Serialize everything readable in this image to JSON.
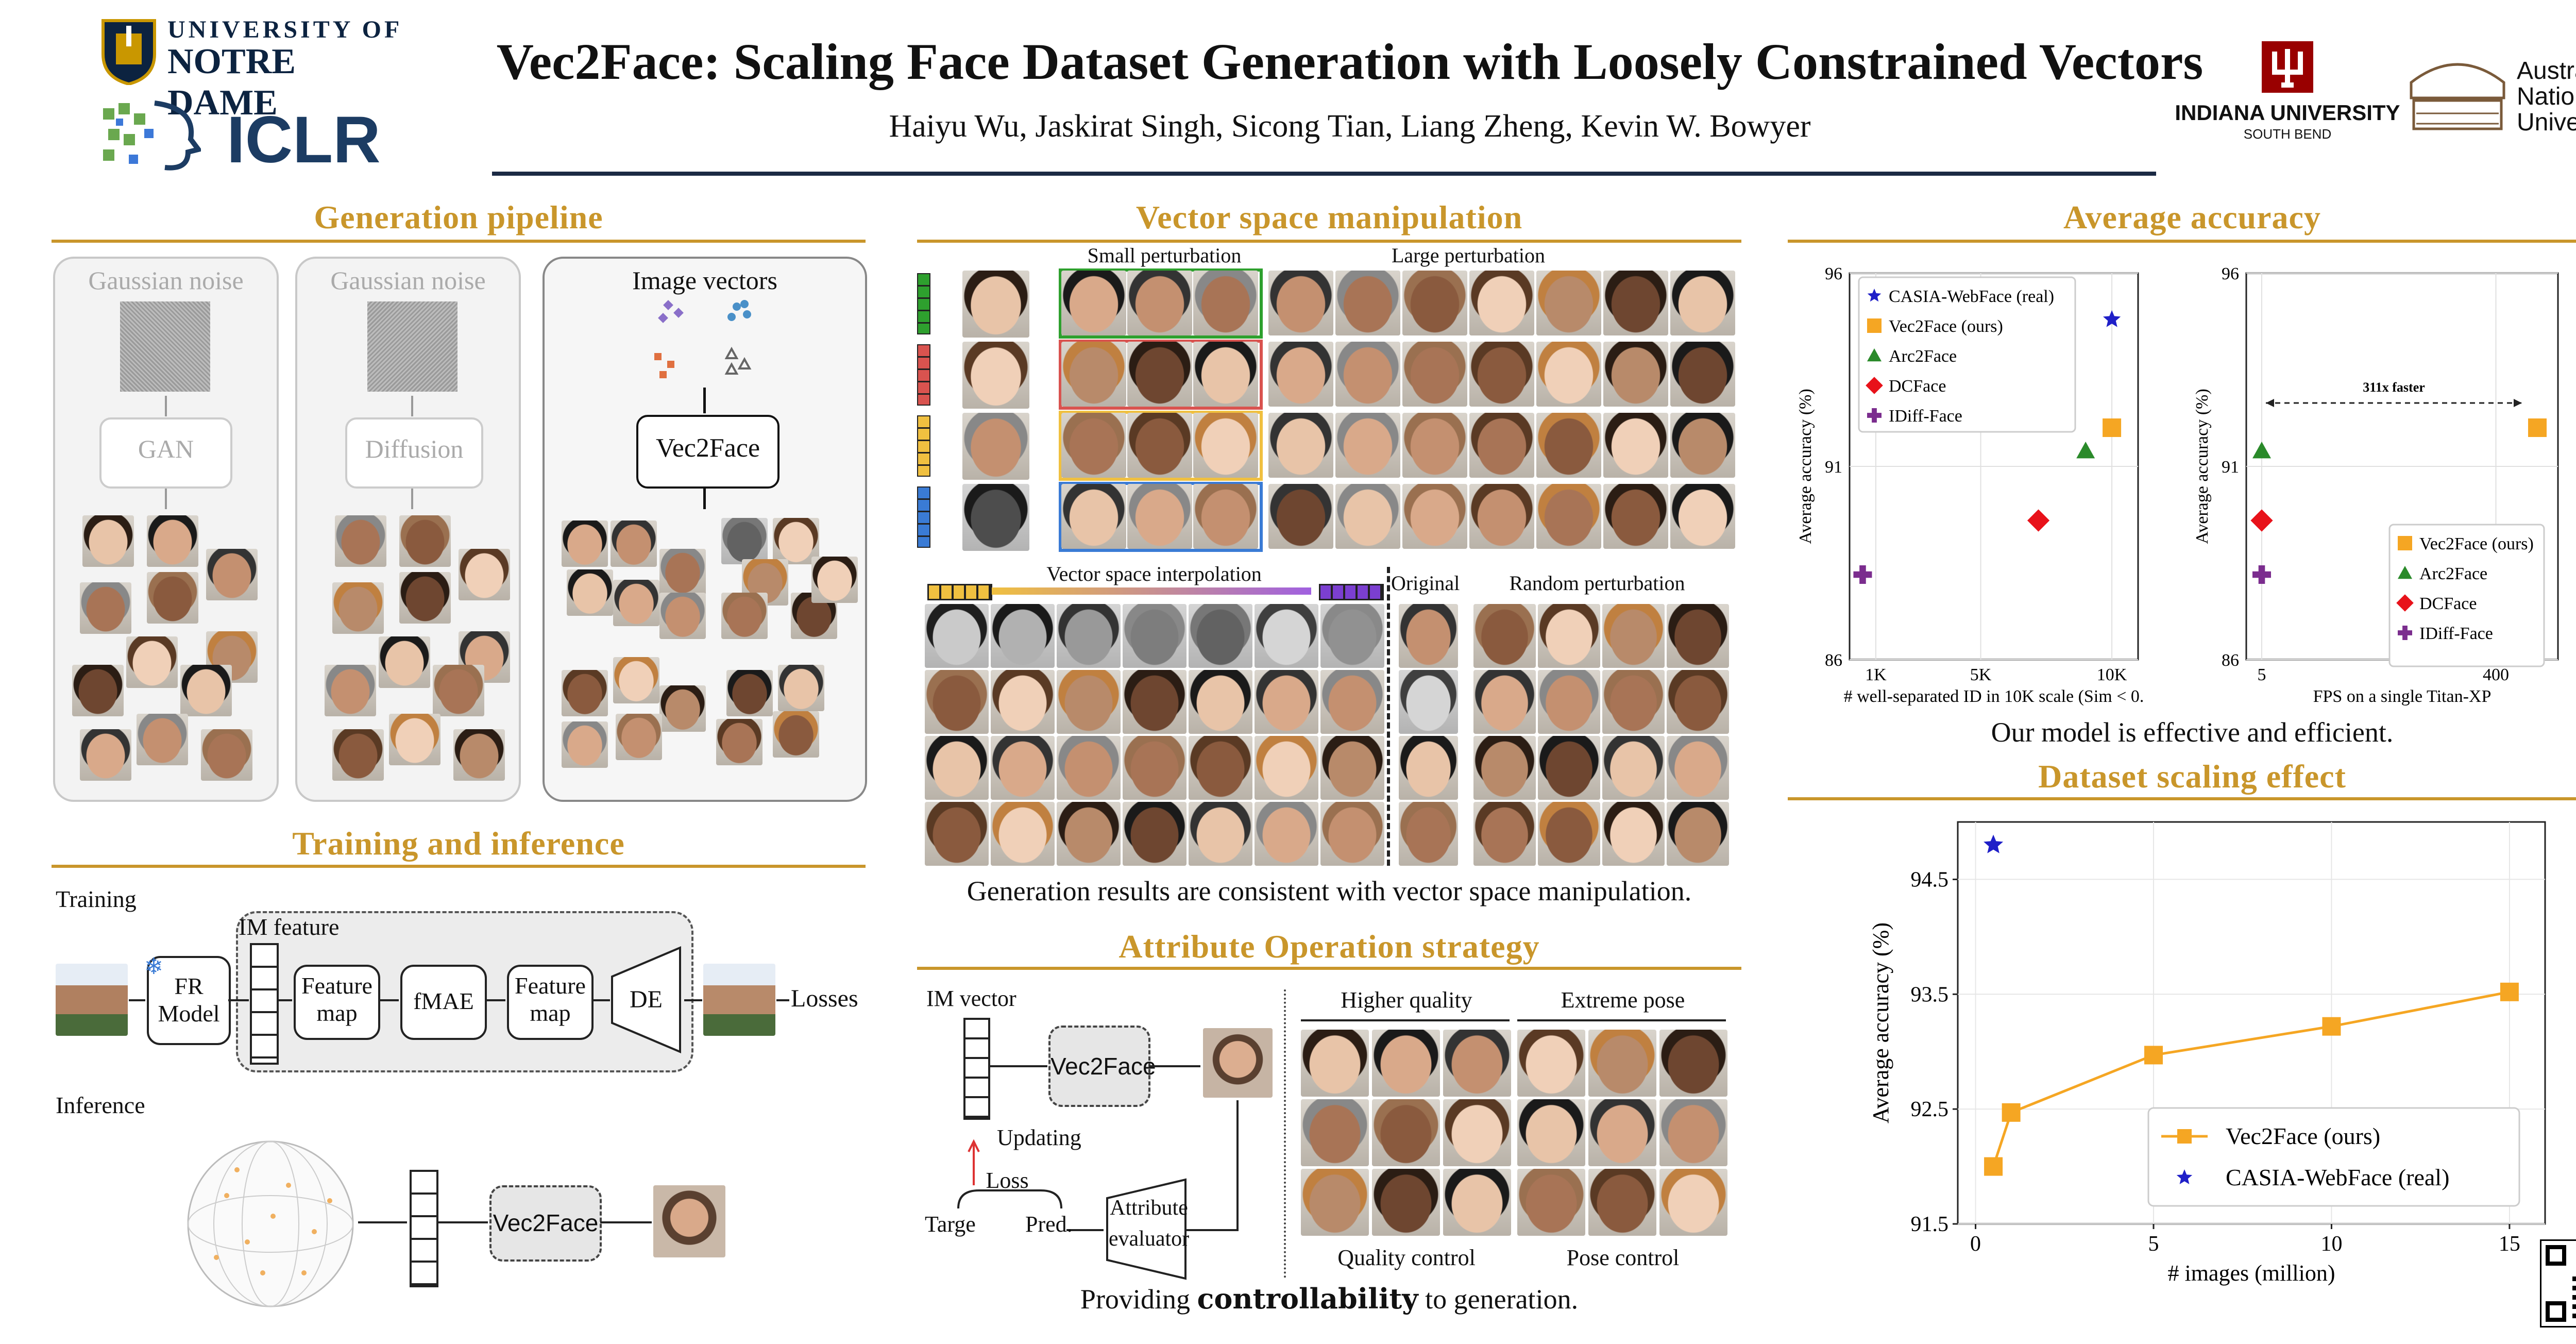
{
  "header": {
    "title": "Vec2Face: Scaling Face Dataset Generation with Loosely Constrained Vectors",
    "authors": "Haiyu Wu, Jaskirat Singh, Sicong Tian, Liang Zheng, Kevin W. Bowyer",
    "logo_nd_top": "UNIVERSITY OF",
    "logo_nd_bottom": "NOTRE DAME",
    "logo_iclr": "ICLR",
    "logo_iu": "INDIANA UNIVERSITY",
    "logo_iu_sub": "SOUTH BEND",
    "logo_anu_1": "Australian",
    "logo_anu_2": "National",
    "logo_anu_3": "University"
  },
  "colors": {
    "gold": "#c9962b",
    "green": "#2ea02e",
    "red": "#d9534f",
    "yellow": "#f0c040",
    "blue": "#3a7bd5",
    "purple": "#7b2d8e",
    "orange": "#f5a623"
  },
  "generation": {
    "title": "Generation pipeline",
    "col1_label": "Gaussian noise",
    "col1_model": "GAN",
    "col2_label": "Gaussian noise",
    "col2_model": "Diffusion",
    "col3_label": "Image vectors",
    "col3_model": "Vec2Face"
  },
  "training": {
    "title": "Training and inference",
    "training_label": "Training",
    "inference_label": "Inference",
    "im_feature": "IM feature",
    "fr_model_1": "FR",
    "fr_model_2": "Model",
    "feature_map_1a": "Feature",
    "feature_map_1b": "map",
    "fmae": "fMAE",
    "feature_map_2a": "Feature",
    "feature_map_2b": "map",
    "de": "DE",
    "losses": "Losses",
    "vec2face": "Vec2Face"
  },
  "vector_space": {
    "title": "Vector space manipulation",
    "small": "Small perturbation",
    "large": "Large perturbation",
    "interp": "Vector space interpolation",
    "original": "Original",
    "random": "Random perturbation",
    "caption": "Generation results are consistent with vector space manipulation."
  },
  "attribute": {
    "title": "Attribute Operation strategy",
    "im_vector": "IM vector",
    "vec2face": "Vec2Face",
    "updating": "Updating",
    "loss": "Loss",
    "target": "Targe",
    "pred": "Pred.",
    "evaluator_1": "Attribute",
    "evaluator_2": "evaluator",
    "higher_quality": "Higher quality",
    "extreme_pose": "Extreme pose",
    "quality_control": "Quality control",
    "pose_control": "Pose control",
    "caption_pre": "Providing ",
    "caption_bold": "controllability",
    "caption_post": " to generation."
  },
  "accuracy": {
    "title": "Average accuracy",
    "caption": "Our model is effective and efficient."
  },
  "scaling": {
    "title": "Dataset scaling effect"
  },
  "chart_data": [
    {
      "type": "scatter",
      "title": "",
      "xlabel": "# well-separated ID in 10K scale (Sim < 0.",
      "ylabel": "Average accuracy (%)",
      "xlim": [
        0,
        11000
      ],
      "ylim": [
        86,
        96
      ],
      "xticks": [
        "1K",
        "5K",
        "10K"
      ],
      "yticks": [
        "86",
        "91",
        "96"
      ],
      "series": [
        {
          "name": "CASIA-WebFace (real)",
          "marker": "star",
          "color": "#1f1fc8",
          "x": 10000,
          "y": 94.8
        },
        {
          "name": "Vec2Face (ours)",
          "marker": "square",
          "color": "#f5a623",
          "x": 10000,
          "y": 92.0
        },
        {
          "name": "Arc2Face",
          "marker": "triangle",
          "color": "#2a8a2a",
          "x": 9000,
          "y": 91.4
        },
        {
          "name": "DCFace",
          "marker": "diamond",
          "color": "#e8121a",
          "x": 7200,
          "y": 89.6
        },
        {
          "name": "IDiff-Face",
          "marker": "plus",
          "color": "#7b2d8e",
          "x": 500,
          "y": 88.2
        }
      ]
    },
    {
      "type": "scatter",
      "title": "",
      "xlabel": "FPS on a single Titan-XP",
      "ylabel": "Average accuracy (%)",
      "xlim": [
        0,
        500
      ],
      "ylim": [
        86,
        96
      ],
      "xticks": [
        "5",
        "400"
      ],
      "yticks": [
        "86",
        "91",
        "96"
      ],
      "annotation": "311x faster",
      "series": [
        {
          "name": "Vec2Face (ours)",
          "marker": "square",
          "color": "#f5a623",
          "x": 470,
          "y": 92.0
        },
        {
          "name": "Arc2Face",
          "marker": "triangle",
          "color": "#2a8a2a",
          "x": 5,
          "y": 91.4
        },
        {
          "name": "DCFace",
          "marker": "diamond",
          "color": "#e8121a",
          "x": 5,
          "y": 89.6
        },
        {
          "name": "IDiff-Face",
          "marker": "plus",
          "color": "#7b2d8e",
          "x": 5,
          "y": 88.2
        }
      ]
    },
    {
      "type": "line",
      "title": "",
      "xlabel": "# images (million)",
      "ylabel": "Average accuracy (%)",
      "xlim": [
        -0.5,
        16
      ],
      "ylim": [
        91.5,
        95.0
      ],
      "xticks": [
        "0",
        "5",
        "10",
        "15"
      ],
      "yticks": [
        "91.5",
        "92.5",
        "93.5",
        "94.5"
      ],
      "series": [
        {
          "name": "Vec2Face (ours)",
          "color": "#f5a623",
          "x": [
            0.5,
            1,
            5,
            10,
            15
          ],
          "y": [
            92.0,
            92.47,
            92.97,
            93.22,
            93.52
          ]
        },
        {
          "name": "CASIA-WebFace (real)",
          "color": "#1f1fc8",
          "x": [
            0.5
          ],
          "y": [
            94.8
          ]
        }
      ]
    }
  ]
}
